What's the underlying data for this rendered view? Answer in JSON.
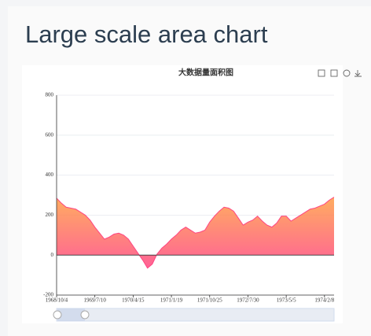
{
  "heading": "Large scale area chart",
  "chart_data": {
    "type": "area",
    "title": "大数据量面积图",
    "categories": [
      "1968/10/4",
      null,
      null,
      null,
      null,
      null,
      null,
      null,
      "1969/7/10",
      null,
      null,
      null,
      null,
      null,
      null,
      null,
      "1970/4/15",
      null,
      null,
      null,
      null,
      null,
      null,
      null,
      "1971/1/19",
      null,
      null,
      null,
      null,
      null,
      null,
      null,
      "1971/10/25",
      null,
      null,
      null,
      null,
      null,
      null,
      null,
      "1972/7/30",
      null,
      null,
      null,
      null,
      null,
      null,
      null,
      "1973/5/5",
      null,
      null,
      null,
      null,
      null,
      null,
      null,
      "1974/2/8",
      null,
      null
    ],
    "values": [
      285,
      260,
      240,
      235,
      230,
      215,
      200,
      175,
      140,
      110,
      80,
      90,
      105,
      110,
      100,
      80,
      45,
      10,
      -25,
      -65,
      -45,
      5,
      35,
      55,
      80,
      100,
      125,
      140,
      125,
      110,
      115,
      125,
      165,
      195,
      220,
      240,
      235,
      220,
      185,
      150,
      165,
      175,
      195,
      170,
      150,
      140,
      160,
      195,
      195,
      170,
      185,
      200,
      215,
      230,
      235,
      245,
      255,
      275,
      290
    ],
    "color": "#ff4683",
    "area_colors": [
      "#ff9e44",
      "#ff4683"
    ],
    "ylim": [
      -200,
      800
    ],
    "yticks": [
      -200,
      0,
      200,
      400,
      600,
      800
    ],
    "grid": true
  }
}
